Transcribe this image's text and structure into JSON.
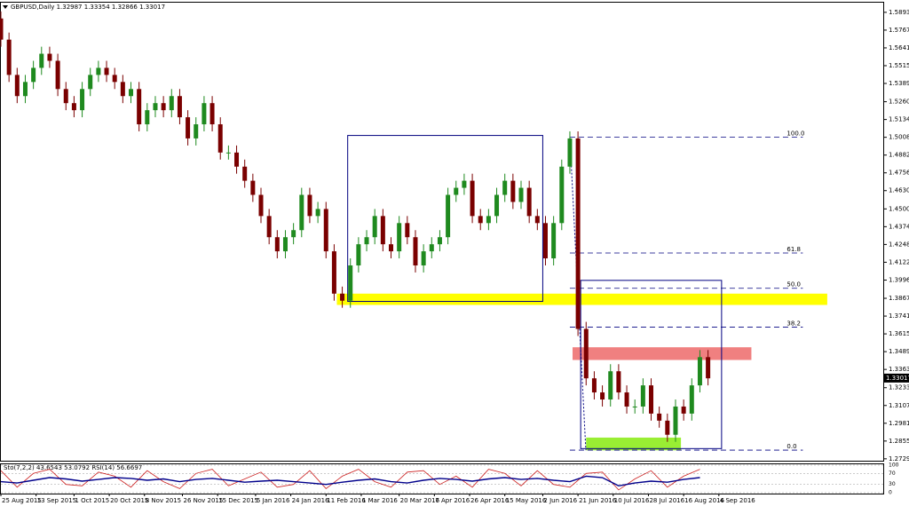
{
  "chart_data": {
    "type": "candlestick",
    "title": "GBPUSD,Daily  1.32987 1.33354 1.32866 1.33017",
    "up_color": "#1f8a1f",
    "down_color": "#7a0000",
    "xlim": [
      0,
      326
    ],
    "ylim": [
      1.2716,
      1.5962
    ],
    "x": [
      0,
      3,
      6,
      9,
      12,
      15,
      18,
      21,
      24,
      27,
      30,
      33,
      36,
      39,
      42,
      45,
      48,
      51,
      54,
      57,
      60,
      63,
      66,
      69,
      72,
      75,
      78,
      81,
      84,
      87,
      90,
      93,
      96,
      99,
      102,
      105,
      108,
      111,
      114,
      117,
      120,
      123,
      126,
      129,
      132,
      135,
      138,
      141,
      144,
      147,
      150,
      153,
      156,
      159,
      162,
      165,
      168,
      171,
      174,
      177,
      180,
      183,
      186,
      189,
      192,
      195,
      198,
      201,
      204,
      207,
      210,
      213,
      216,
      219,
      222,
      225,
      228,
      231,
      234,
      237,
      240,
      243,
      246,
      249,
      252,
      255,
      258,
      261
    ],
    "open": [
      1.585,
      1.57,
      1.545,
      1.53,
      1.54,
      1.55,
      1.56,
      1.555,
      1.535,
      1.525,
      1.52,
      1.535,
      1.545,
      1.55,
      1.545,
      1.54,
      1.53,
      1.535,
      1.51,
      1.52,
      1.525,
      1.52,
      1.53,
      1.515,
      1.5,
      1.51,
      1.525,
      1.51,
      1.49,
      1.49,
      1.48,
      1.47,
      1.46,
      1.445,
      1.43,
      1.42,
      1.43,
      1.435,
      1.46,
      1.445,
      1.45,
      1.42,
      1.39,
      1.385,
      1.41,
      1.425,
      1.43,
      1.445,
      1.425,
      1.42,
      1.44,
      1.43,
      1.41,
      1.42,
      1.425,
      1.43,
      1.46,
      1.465,
      1.47,
      1.445,
      1.44,
      1.445,
      1.46,
      1.47,
      1.455,
      1.465,
      1.445,
      1.44,
      1.415,
      1.44,
      1.48,
      1.5,
      1.365,
      1.33,
      1.32,
      1.315,
      1.335,
      1.32,
      1.31,
      1.31,
      1.325,
      1.305,
      1.3,
      1.29,
      1.31,
      1.305,
      1.325,
      1.345
    ],
    "high": [
      1.59,
      1.575,
      1.55,
      1.545,
      1.555,
      1.565,
      1.565,
      1.56,
      1.54,
      1.53,
      1.54,
      1.55,
      1.555,
      1.555,
      1.55,
      1.545,
      1.54,
      1.54,
      1.525,
      1.53,
      1.53,
      1.535,
      1.535,
      1.52,
      1.515,
      1.53,
      1.53,
      1.515,
      1.495,
      1.495,
      1.485,
      1.475,
      1.465,
      1.45,
      1.435,
      1.435,
      1.44,
      1.465,
      1.465,
      1.455,
      1.455,
      1.425,
      1.395,
      1.415,
      1.43,
      1.435,
      1.45,
      1.45,
      1.43,
      1.445,
      1.445,
      1.435,
      1.425,
      1.43,
      1.435,
      1.465,
      1.47,
      1.475,
      1.475,
      1.45,
      1.45,
      1.465,
      1.475,
      1.475,
      1.47,
      1.47,
      1.45,
      1.445,
      1.445,
      1.485,
      1.505,
      1.505,
      1.37,
      1.335,
      1.325,
      1.34,
      1.34,
      1.325,
      1.315,
      1.33,
      1.33,
      1.31,
      1.305,
      1.315,
      1.315,
      1.33,
      1.35,
      1.35
    ],
    "low": [
      1.565,
      1.54,
      1.525,
      1.525,
      1.535,
      1.545,
      1.55,
      1.53,
      1.52,
      1.515,
      1.515,
      1.53,
      1.54,
      1.54,
      1.535,
      1.525,
      1.525,
      1.505,
      1.505,
      1.515,
      1.515,
      1.515,
      1.51,
      1.495,
      1.495,
      1.505,
      1.505,
      1.485,
      1.485,
      1.475,
      1.465,
      1.455,
      1.44,
      1.425,
      1.415,
      1.415,
      1.425,
      1.43,
      1.44,
      1.44,
      1.415,
      1.385,
      1.38,
      1.38,
      1.405,
      1.42,
      1.425,
      1.42,
      1.415,
      1.415,
      1.425,
      1.405,
      1.405,
      1.415,
      1.42,
      1.425,
      1.455,
      1.46,
      1.44,
      1.435,
      1.435,
      1.44,
      1.455,
      1.45,
      1.45,
      1.44,
      1.435,
      1.41,
      1.41,
      1.435,
      1.475,
      1.36,
      1.325,
      1.315,
      1.31,
      1.31,
      1.315,
      1.305,
      1.305,
      1.305,
      1.3,
      1.295,
      1.285,
      1.285,
      1.3,
      1.3,
      1.32,
      1.325
    ],
    "close": [
      1.57,
      1.545,
      1.53,
      1.54,
      1.55,
      1.56,
      1.555,
      1.535,
      1.525,
      1.52,
      1.535,
      1.545,
      1.55,
      1.545,
      1.54,
      1.53,
      1.535,
      1.51,
      1.52,
      1.525,
      1.52,
      1.53,
      1.515,
      1.5,
      1.51,
      1.525,
      1.51,
      1.49,
      1.49,
      1.48,
      1.47,
      1.46,
      1.445,
      1.43,
      1.42,
      1.43,
      1.435,
      1.46,
      1.445,
      1.45,
      1.42,
      1.39,
      1.385,
      1.41,
      1.425,
      1.43,
      1.445,
      1.425,
      1.42,
      1.44,
      1.43,
      1.41,
      1.42,
      1.425,
      1.43,
      1.46,
      1.465,
      1.47,
      1.445,
      1.44,
      1.445,
      1.46,
      1.47,
      1.455,
      1.465,
      1.445,
      1.44,
      1.415,
      1.44,
      1.48,
      1.5,
      1.365,
      1.33,
      1.32,
      1.315,
      1.335,
      1.32,
      1.31,
      1.31,
      1.325,
      1.305,
      1.3,
      1.29,
      1.31,
      1.305,
      1.325,
      1.345,
      1.33
    ],
    "last_price": 1.33017,
    "yticks": [
      1.58935,
      1.57675,
      1.56415,
      1.55155,
      1.53895,
      {
        "value": 1.526,
        "label": "1.52600"
      },
      {
        "value": 1.5134,
        "label": "1.51340"
      },
      {
        "value": 1.5008,
        "label": "1.50080"
      },
      {
        "value": 1.4882,
        "label": "1.48820"
      },
      {
        "value": 1.4756,
        "label": "1.47560"
      },
      {
        "value": 1.463,
        "label": "1.46300"
      },
      1.45005,
      1.43745,
      1.42485,
      1.41225,
      {
        "value": 1.3996,
        "label": "1.39960"
      },
      {
        "value": 1.3867,
        "label": "1.38670"
      },
      {
        "value": 1.3741,
        "label": "1.37410"
      },
      {
        "value": 1.3615,
        "label": "1.36150"
      },
      {
        "value": 1.3489,
        "label": "1.34890"
      },
      {
        "value": 1.3363,
        "label": "1.33630"
      },
      1.32335,
      1.31075,
      1.29815,
      1.28555,
      1.27295
    ],
    "xticks": [
      {
        "value": 0,
        "label": "25 Aug 2015"
      },
      {
        "value": 13,
        "label": "13 Sep 2015"
      },
      {
        "value": 27,
        "label": "1 Oct 2015"
      },
      {
        "value": 40,
        "label": "20 Oct 2015"
      },
      {
        "value": 53,
        "label": "8 Nov 2015"
      },
      {
        "value": 67,
        "label": "26 Nov 2015"
      },
      {
        "value": 80,
        "label": "15 Dec 2015"
      },
      {
        "value": 94,
        "label": "5 Jan 2016"
      },
      {
        "value": 107,
        "label": "24 Jan 2016"
      },
      {
        "value": 120,
        "label": "11 Feb 2016"
      },
      {
        "value": 133,
        "label": "1 Mar 2016"
      },
      {
        "value": 147,
        "label": "20 Mar 2016"
      },
      {
        "value": 160,
        "label": "7 Apr 2016"
      },
      {
        "value": 173,
        "label": "26 Apr 2016"
      },
      {
        "value": 186,
        "label": "15 May 2016"
      },
      {
        "value": 200,
        "label": "2 Jun 2016"
      },
      {
        "value": 213,
        "label": "21 Jun 2016"
      },
      {
        "value": 226,
        "label": "10 Jul 2016"
      },
      {
        "value": 239,
        "label": "28 Jul 2016"
      },
      {
        "value": 252,
        "label": "16 Aug 2016"
      },
      {
        "value": 265,
        "label": "4 Sep 2016"
      }
    ],
    "fib_levels": [
      {
        "label": "100.0",
        "value": 1.5008
      },
      {
        "label": "61.8",
        "value": 1.4188
      },
      {
        "label": "50.0",
        "value": 1.3938
      },
      {
        "label": "38.2",
        "value": 1.3663
      },
      {
        "label": "0.0",
        "value": 1.2791
      }
    ],
    "fib_x": [
      210,
      296
    ],
    "zones": [
      {
        "color": "#ffff00",
        "x": [
          124,
          305
        ],
        "y": [
          1.382,
          1.39
        ]
      },
      {
        "color": "#f08080",
        "x": [
          211,
          277
        ],
        "y": [
          1.343,
          1.352
        ]
      },
      {
        "color": "#99ee33",
        "x": [
          216,
          251
        ],
        "y": [
          1.279,
          1.288
        ]
      }
    ],
    "boxes": [
      {
        "color": "#000080",
        "x": [
          128,
          200
        ],
        "y": [
          1.3845,
          1.5021
        ]
      },
      {
        "color": "#000080",
        "x": [
          214,
          266
        ],
        "y": [
          1.2802,
          1.3994
        ]
      }
    ],
    "indicator": {
      "label": "Sto(7,2,2) 43.6543 53.0792  RSI(14) 56.6697",
      "ylim": [
        0,
        100
      ],
      "yticks": [
        0,
        30,
        70,
        100
      ],
      "series": [
        {
          "color": "#cc2222",
          "values": [
            80,
            20,
            70,
            85,
            30,
            25,
            75,
            60,
            20,
            80,
            40,
            15,
            70,
            85,
            25,
            50,
            75,
            20,
            30,
            80,
            15,
            60,
            85,
            40,
            20,
            75,
            80,
            30,
            60,
            20,
            85,
            70,
            25,
            80,
            30,
            20,
            70,
            75,
            10,
            50,
            80,
            20,
            60,
            85
          ]
        },
        {
          "color": "#00008b",
          "values": [
            40,
            35,
            45,
            55,
            50,
            42,
            48,
            55,
            52,
            45,
            50,
            40,
            48,
            52,
            45,
            38,
            42,
            45,
            40,
            35,
            30,
            38,
            45,
            50,
            40,
            35,
            45,
            52,
            48,
            42,
            50,
            55,
            48,
            52,
            45,
            40,
            60,
            55,
            25,
            35,
            42,
            38,
            48,
            55
          ]
        }
      ]
    }
  }
}
